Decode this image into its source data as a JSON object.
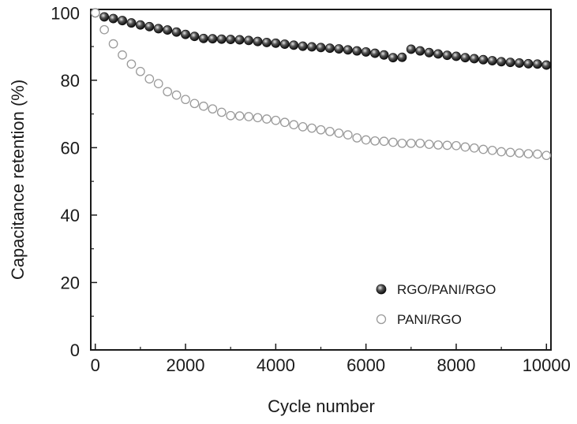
{
  "chart_data": {
    "type": "scatter",
    "xlabel": "Cycle number",
    "ylabel": "Capacitance retention (%)",
    "xlim": [
      -100,
      10100
    ],
    "ylim": [
      0,
      101
    ],
    "xticks": [
      0,
      2000,
      4000,
      6000,
      8000,
      10000
    ],
    "yticks": [
      0,
      20,
      40,
      60,
      80,
      100
    ],
    "xtick_labels": [
      "0",
      "2000",
      "4000",
      "6000",
      "8000",
      "10000"
    ],
    "ytick_labels": [
      "0",
      "20",
      "40",
      "60",
      "80",
      "100"
    ],
    "grid": false,
    "legend_position": "bottom-right",
    "series": [
      {
        "name": "RGO/PANI/RGO",
        "marker": "filled-sphere",
        "color": "#1c1c1c",
        "x": [
          0,
          200,
          400,
          600,
          800,
          1000,
          1200,
          1400,
          1600,
          1800,
          2000,
          2200,
          2400,
          2600,
          2800,
          3000,
          3200,
          3400,
          3600,
          3800,
          4000,
          4200,
          4400,
          4600,
          4800,
          5000,
          5200,
          5400,
          5600,
          5800,
          6000,
          6200,
          6400,
          6600,
          6800,
          7000,
          7200,
          7400,
          7600,
          7800,
          8000,
          8200,
          8400,
          8600,
          8800,
          9000,
          9200,
          9400,
          9600,
          9800,
          10000
        ],
        "y": [
          100,
          98.8,
          98.3,
          97.7,
          97.0,
          96.4,
          95.9,
          95.3,
          94.9,
          94.3,
          93.6,
          93.0,
          92.4,
          92.3,
          92.2,
          92.1,
          92.0,
          91.8,
          91.5,
          91.2,
          91.0,
          90.7,
          90.4,
          90.1,
          89.9,
          89.7,
          89.5,
          89.3,
          89.0,
          88.7,
          88.4,
          88.0,
          87.5,
          86.7,
          86.8,
          89.2,
          88.7,
          88.2,
          87.8,
          87.4,
          87.1,
          86.7,
          86.4,
          86.1,
          85.8,
          85.5,
          85.3,
          85.1,
          84.9,
          84.8,
          84.5
        ]
      },
      {
        "name": "PANI/RGO",
        "marker": "open-circle",
        "color": "#9a9a9a",
        "x": [
          0,
          200,
          400,
          600,
          800,
          1000,
          1200,
          1400,
          1600,
          1800,
          2000,
          2200,
          2400,
          2600,
          2800,
          3000,
          3200,
          3400,
          3600,
          3800,
          4000,
          4200,
          4400,
          4600,
          4800,
          5000,
          5200,
          5400,
          5600,
          5800,
          6000,
          6200,
          6400,
          6600,
          6800,
          7000,
          7200,
          7400,
          7600,
          7800,
          8000,
          8200,
          8400,
          8600,
          8800,
          9000,
          9200,
          9400,
          9600,
          9800,
          10000
        ],
        "y": [
          100,
          95.0,
          90.8,
          87.5,
          84.8,
          82.6,
          80.4,
          79.0,
          76.6,
          75.6,
          74.3,
          73.1,
          72.3,
          71.5,
          70.5,
          69.5,
          69.4,
          69.2,
          68.9,
          68.5,
          68.1,
          67.5,
          66.8,
          66.2,
          65.8,
          65.3,
          64.8,
          64.3,
          63.8,
          62.9,
          62.3,
          62.0,
          61.9,
          61.6,
          61.3,
          61.3,
          61.3,
          61.0,
          60.8,
          60.7,
          60.6,
          60.2,
          59.9,
          59.5,
          59.2,
          58.8,
          58.6,
          58.4,
          58.2,
          58.1,
          57.7
        ]
      }
    ]
  }
}
